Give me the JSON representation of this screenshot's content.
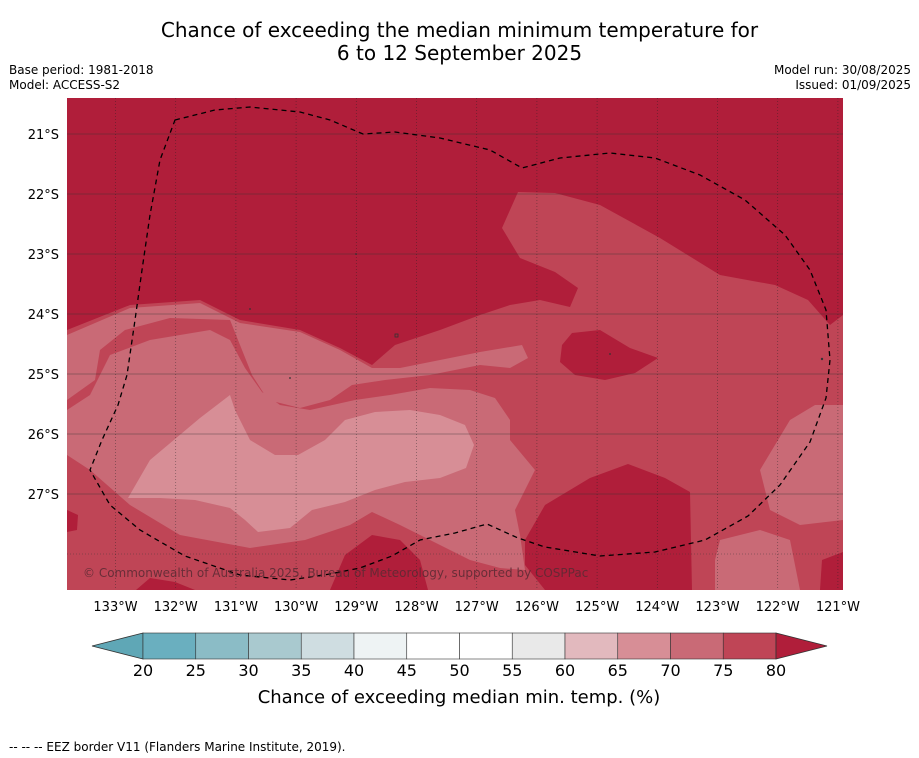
{
  "title_line1": "Chance of exceeding the median minimum temperature for",
  "title_line2": "6 to 12 September 2025",
  "base_period": "Base period: 1981-2018",
  "model": "Model: ACCESS-S2",
  "model_run": "Model run: 30/08/2025",
  "issued": "Issued: 01/09/2025",
  "copyright": "© Commonwealth of Australia 2025, Bureau of Meteorology, supported by COSPPac",
  "lat_labels": [
    "21°S",
    "22°S",
    "23°S",
    "24°S",
    "25°S",
    "26°S",
    "27°S"
  ],
  "lon_labels": [
    "133°W",
    "132°W",
    "131°W",
    "130°W",
    "129°W",
    "128°W",
    "127°W",
    "126°W",
    "125°W",
    "124°W",
    "123°W",
    "122°W",
    "121°W"
  ],
  "colorbar": {
    "ticks": [
      "20",
      "25",
      "30",
      "35",
      "40",
      "45",
      "50",
      "55",
      "60",
      "65",
      "70",
      "75",
      "80"
    ],
    "title": "Chance of exceeding median min. temp. (%)",
    "colors": [
      "#5fa7b6",
      "#6aafbf",
      "#8bbcc6",
      "#a9c9cf",
      "#cfdde1",
      "#eef3f4",
      "#ffffff",
      "#ffffff",
      "#e9e9e9",
      "#e2b9be",
      "#d78e96",
      "#c96a76",
      "#bf4556",
      "#b01e3a"
    ]
  },
  "map_colors": {
    "c80": "#b01e3a",
    "c75": "#bf4556",
    "c70": "#c96a76",
    "c65": "#d78e96"
  },
  "footer": "--  --  -- EEZ border V11 (Flanders Marine Institute, 2019)."
}
